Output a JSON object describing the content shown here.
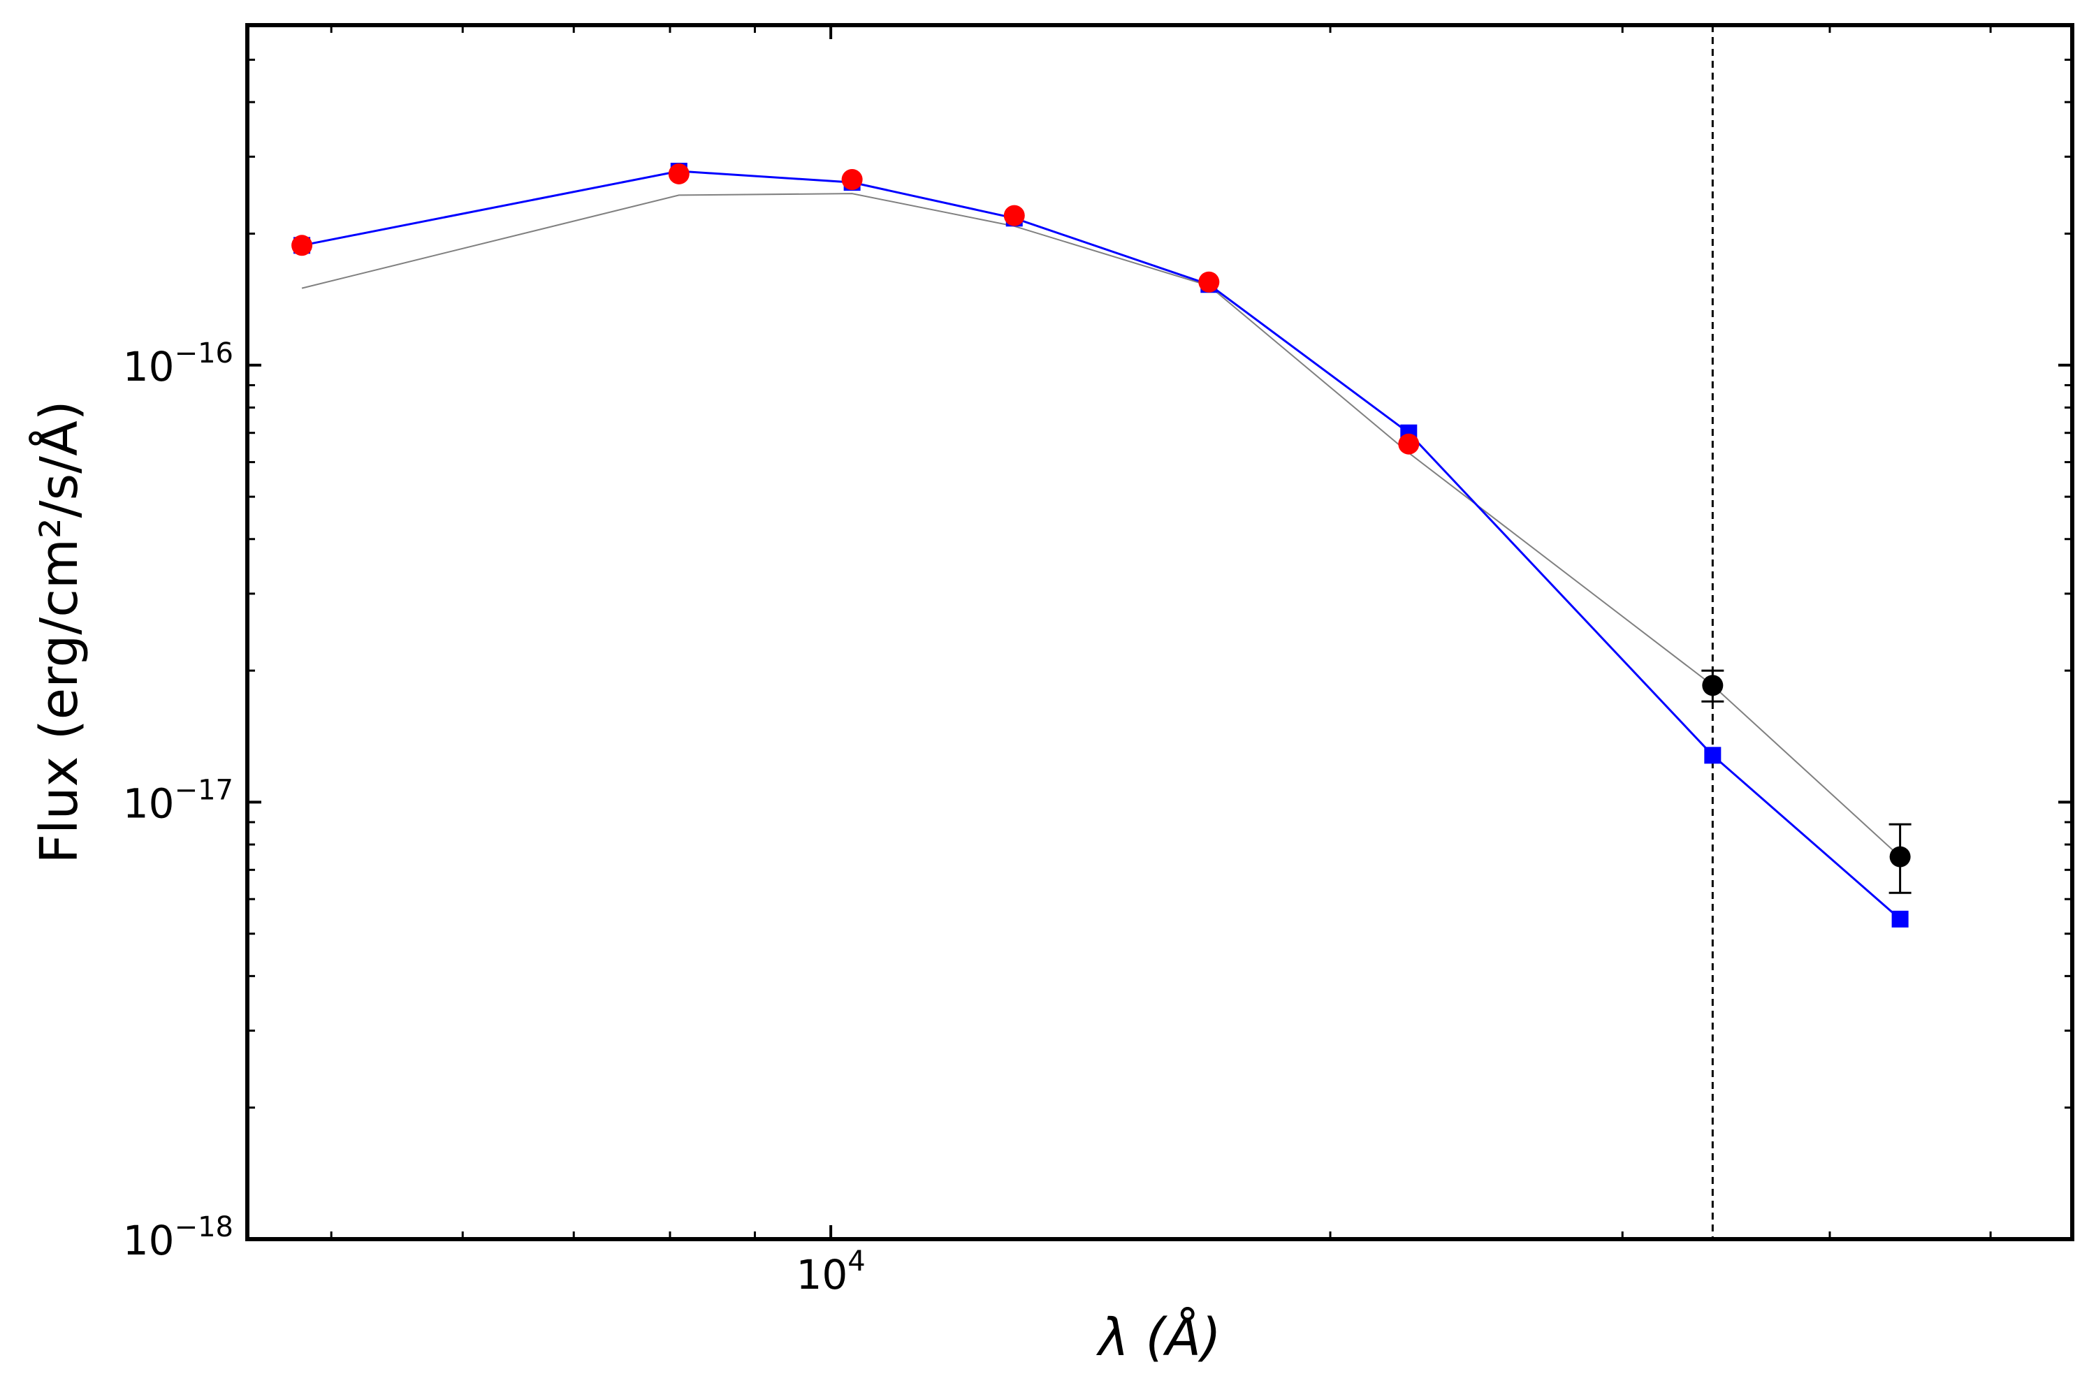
{
  "chart_data": {
    "type": "scatter",
    "title": "",
    "xlabel": "λ (Å)",
    "ylabel": "Flux (erg/cm²/s/Å)",
    "xscale": "log",
    "yscale": "log",
    "xlim": [
      4450,
      56000
    ],
    "ylim": [
      1e-18,
      6e-16
    ],
    "x_major_ticks": [
      {
        "value": 10000,
        "label_base": "10",
        "label_exp": "4"
      }
    ],
    "x_minor_ticks": [
      5000,
      6000,
      7000,
      8000,
      9000,
      20000,
      30000,
      40000,
      50000
    ],
    "y_major_ticks": [
      {
        "value": 1e-18,
        "label_base": "10",
        "label_exp": "−18"
      },
      {
        "value": 1e-17,
        "label_base": "10",
        "label_exp": "−17"
      },
      {
        "value": 1e-16,
        "label_base": "10",
        "label_exp": "−16"
      }
    ],
    "y_minor_ticks": [
      2e-18,
      3e-18,
      4e-18,
      5e-18,
      6e-18,
      7e-18,
      8e-18,
      9e-18,
      2e-17,
      3e-17,
      4e-17,
      5e-17,
      6e-17,
      7e-17,
      8e-17,
      9e-17,
      2e-16,
      3e-16,
      4e-16,
      5e-16
    ],
    "vline": {
      "x": 34000,
      "style": "dashed",
      "color": "#000000"
    },
    "grid": false,
    "legend": "none",
    "series": [
      {
        "style": "line",
        "color": "#808080",
        "x": [
          4800,
          8100,
          10300,
          12900,
          16900,
          22300,
          34000,
          44100
        ],
        "y": [
          1.5e-16,
          2.45e-16,
          2.47e-16,
          2.08e-16,
          1.52e-16,
          6.3e-17,
          1.85e-17,
          7.5e-18
        ]
      },
      {
        "style": "line+square",
        "color": "#0000ff",
        "x": [
          4800,
          8100,
          10300,
          12900,
          16900,
          22300,
          34000,
          44100
        ],
        "y": [
          1.88e-16,
          2.78e-16,
          2.62e-16,
          2.17e-16,
          1.53e-16,
          7e-17,
          1.28e-17,
          5.4e-18
        ]
      },
      {
        "style": "circle",
        "color": "#ff0000",
        "x": [
          4800,
          8100,
          10300,
          12900,
          16900,
          22300
        ],
        "y": [
          1.88e-16,
          2.74e-16,
          2.66e-16,
          2.2e-16,
          1.55e-16,
          6.6e-17
        ]
      },
      {
        "style": "circle+errorbar",
        "color": "#000000",
        "x": [
          34000,
          44100
        ],
        "y": [
          1.85e-17,
          7.5e-18
        ],
        "yerr_low": [
          1.7e-17,
          6.2e-18
        ],
        "yerr_high": [
          2e-17,
          8.9e-18
        ]
      }
    ]
  }
}
